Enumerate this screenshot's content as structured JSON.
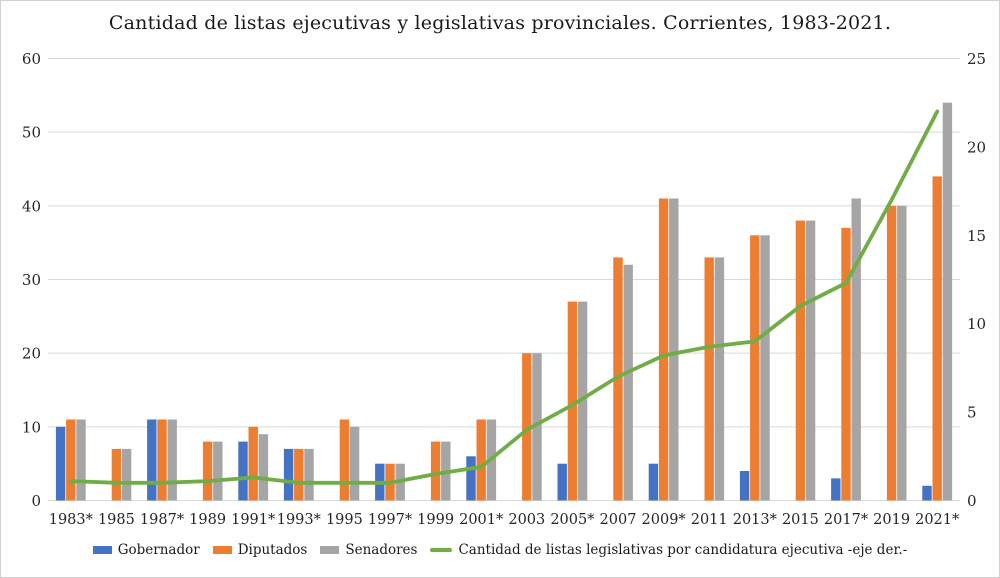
{
  "title": "Cantidad de listas ejecutivas y legislativas provinciales. Corrientes, 1983-2021.",
  "chart_data": {
    "type": "bar",
    "subtype": "grouped-bars-with-line-dual-axis",
    "title": "Cantidad de listas ejecutivas y legislativas provinciales. Corrientes, 1983-2021.",
    "categories": [
      "1983*",
      "1985",
      "1987*",
      "1989",
      "1991*",
      "1993*",
      "1995",
      "1997*",
      "1999",
      "2001*",
      "2003",
      "2005*",
      "2007",
      "2009*",
      "2011",
      "2013*",
      "2015",
      "2017*",
      "2019",
      "2021*"
    ],
    "bar_series": [
      {
        "name": "Gobernador",
        "color": "#4472C4",
        "values": [
          10,
          null,
          11,
          null,
          8,
          7,
          null,
          5,
          null,
          6,
          null,
          5,
          null,
          5,
          null,
          4,
          null,
          3,
          null,
          2
        ]
      },
      {
        "name": "Diputados",
        "color": "#ED7D31",
        "values": [
          11,
          7,
          11,
          8,
          10,
          7,
          11,
          5,
          8,
          11,
          20,
          27,
          33,
          41,
          33,
          36,
          38,
          37,
          40,
          44
        ]
      },
      {
        "name": "Senadores",
        "color": "#A5A5A5",
        "values": [
          11,
          7,
          11,
          8,
          9,
          7,
          10,
          5,
          8,
          11,
          20,
          27,
          32,
          41,
          33,
          36,
          38,
          41,
          40,
          54
        ]
      }
    ],
    "line_series": {
      "name": "Cantidad de listas legislativas por candidatura ejecutiva -eje der.-",
      "color": "#70AD47",
      "axis": "right",
      "values": [
        1.1,
        1.0,
        1.0,
        1.1,
        1.3,
        1.0,
        1.0,
        1.0,
        1.5,
        1.9,
        4.0,
        5.4,
        7.0,
        8.2,
        8.7,
        9.0,
        11.0,
        12.3,
        17.0,
        22.0
      ]
    },
    "axes": {
      "left": {
        "min": 0,
        "max": 60,
        "ticks": [
          0,
          10,
          20,
          30,
          40,
          50,
          60
        ]
      },
      "right": {
        "min": 0,
        "max": 25,
        "ticks": [
          0,
          5,
          10,
          15,
          20,
          25
        ]
      }
    },
    "grid": true,
    "grid_color": "#d9d9d9",
    "legend_position": "bottom"
  },
  "legend": {
    "items": [
      {
        "label": "Gobernador",
        "color": "#4472C4",
        "type": "bar"
      },
      {
        "label": "Diputados",
        "color": "#ED7D31",
        "type": "bar"
      },
      {
        "label": "Senadores",
        "color": "#A5A5A5",
        "type": "bar"
      },
      {
        "label": "Cantidad de listas legislativas por candidatura ejecutiva -eje der.-",
        "color": "#70AD47",
        "type": "line"
      }
    ]
  }
}
